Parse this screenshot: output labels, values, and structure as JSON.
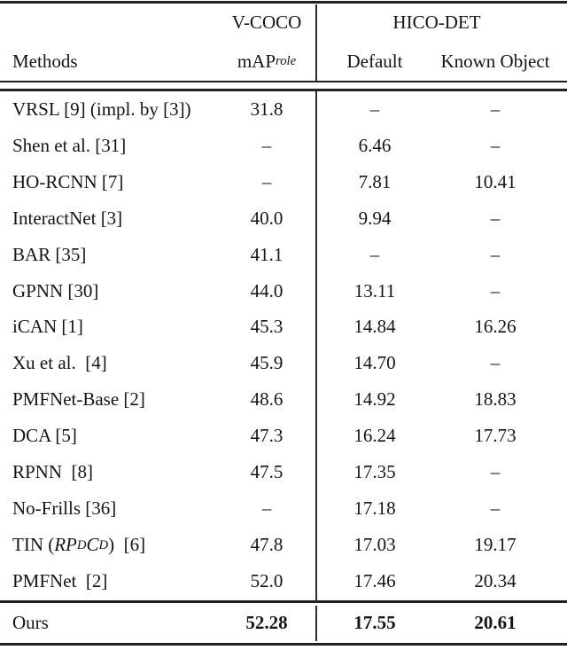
{
  "table": {
    "group_headers": {
      "vcoco": "V-COCO",
      "hicodet": "HICO-DET"
    },
    "col_headers": {
      "methods": "Methods",
      "map_base": "mAP",
      "map_sub": "role",
      "default": "Default",
      "known_object": "Known Object"
    },
    "rows": [
      {
        "method": "VRSL [9] (impl. by [3])",
        "vcoco": "31.8",
        "hico_default": "–",
        "hico_known": "–"
      },
      {
        "method": "Shen et al. [31]",
        "vcoco": "–",
        "hico_default": "6.46",
        "hico_known": "–"
      },
      {
        "method": "HO-RCNN [7]",
        "vcoco": "–",
        "hico_default": "7.81",
        "hico_known": "10.41"
      },
      {
        "method": "InteractNet [3]",
        "vcoco": "40.0",
        "hico_default": "9.94",
        "hico_known": "–"
      },
      {
        "method": "BAR [35]",
        "vcoco": "41.1",
        "hico_default": "–",
        "hico_known": "–"
      },
      {
        "method": "GPNN [30]",
        "vcoco": "44.0",
        "hico_default": "13.11",
        "hico_known": "–"
      },
      {
        "method": "iCAN [1]",
        "vcoco": "45.3",
        "hico_default": "14.84",
        "hico_known": "16.26"
      },
      {
        "method": "Xu et al.  [4]",
        "vcoco": "45.9",
        "hico_default": "14.70",
        "hico_known": "–"
      },
      {
        "method": "PMFNet-Base [2]",
        "vcoco": "48.6",
        "hico_default": "14.92",
        "hico_known": "18.83"
      },
      {
        "method": "DCA [5]",
        "vcoco": "47.3",
        "hico_default": "16.24",
        "hico_known": "17.73"
      },
      {
        "method": "RPNN  [8]",
        "vcoco": "47.5",
        "hico_default": "17.35",
        "hico_known": "–"
      },
      {
        "method": "No-Frills [36]",
        "vcoco": "–",
        "hico_default": "17.18",
        "hico_known": "–"
      },
      {
        "method_prefix": "TIN (",
        "math_rp": "RP",
        "math_sub1": "D",
        "math_c": "C",
        "math_sub2": "D",
        "method_suffix": ")  [6]",
        "vcoco": "47.8",
        "hico_default": "17.03",
        "hico_known": "19.17"
      },
      {
        "method": "PMFNet  [2]",
        "vcoco": "52.0",
        "hico_default": "17.46",
        "hico_known": "20.34"
      }
    ],
    "ours_row": {
      "method": "Ours",
      "vcoco": "52.28",
      "hico_default": "17.55",
      "hico_known": "20.61"
    }
  },
  "colors": {
    "text": "#151515",
    "rule": "#212121",
    "background": "#ffffff"
  }
}
